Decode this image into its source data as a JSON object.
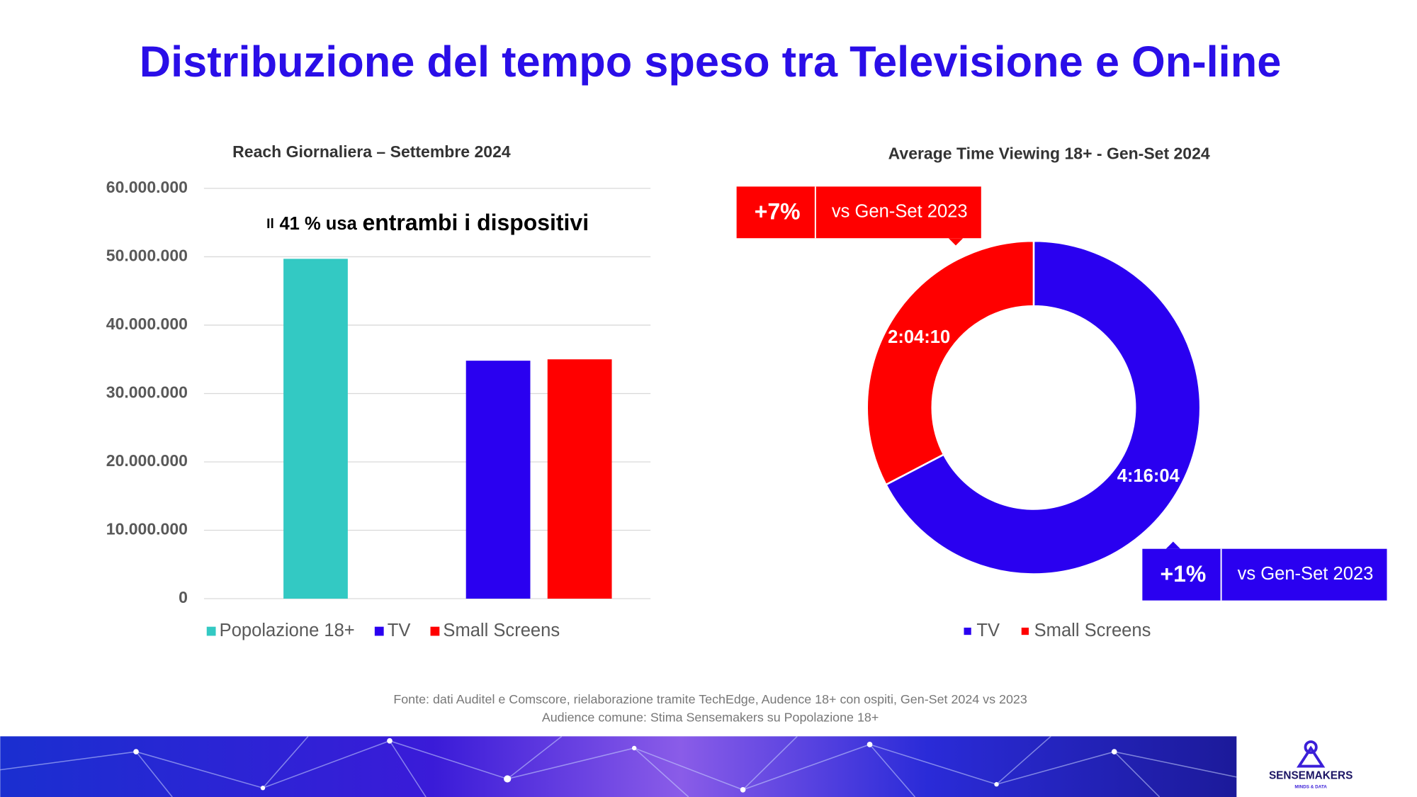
{
  "title": "Distribuzione del tempo speso tra Televisione e On-line",
  "chart_data": [
    {
      "type": "bar",
      "title": "Reach Giornaliera – Settembre 2024",
      "annotation": [
        "Il",
        "41 % usa",
        "entrambi i dispositivi"
      ],
      "categories": [
        null,
        null
      ],
      "series": [
        {
          "name": "Popolazione 18+",
          "color": "#33c9c3",
          "values": [
            49700000,
            null
          ]
        },
        {
          "name": "TV",
          "color": "#2a00f0",
          "values": [
            null,
            34800000
          ]
        },
        {
          "name": "Small Screens",
          "color": "#ff0000",
          "values": [
            null,
            35000000
          ]
        }
      ],
      "ylim": [
        0,
        60000000
      ],
      "yticks": [
        0,
        {
          "value": 10000000,
          "label": "10.000.000"
        },
        {
          "value": 20000000,
          "label": "20.000.000"
        },
        {
          "value": 30000000,
          "label": "30.000.000"
        },
        {
          "value": 40000000,
          "label": "40.000.000"
        },
        {
          "value": 50000000,
          "label": "50.000.000"
        },
        {
          "value": 60000000,
          "label": "60.000.000"
        }
      ],
      "grid": true,
      "legend": "bottom"
    },
    {
      "type": "pie",
      "title": "Average Time Viewing 18+ - Gen-Set 2024",
      "categories": [
        "TV",
        "Small Screens"
      ],
      "values": [
        15364,
        7450
      ],
      "value_labels": [
        "4:16:04",
        "2:04:10"
      ],
      "colors": [
        "#2a00f0",
        "#ff0000"
      ],
      "legend": "bottom",
      "callouts": [
        {
          "change": "+7%",
          "label": "vs Gen-Set 2023",
          "color": "#ff0000"
        },
        {
          "change": "+1%",
          "label": "vs Gen-Set 2023",
          "color": "#2a00f0"
        }
      ]
    }
  ],
  "footnote": [
    "Fonte: dati Auditel e Comscore, rielaborazione tramite TechEdge, Audence 18+ con ospiti, Gen-Set 2024 vs 2023",
    "Audience comune: Stima Sensemakers su Popolazione 18+"
  ],
  "logo": {
    "name": "SENSEMAKERS",
    "tagline": "MINDS & DATA"
  }
}
